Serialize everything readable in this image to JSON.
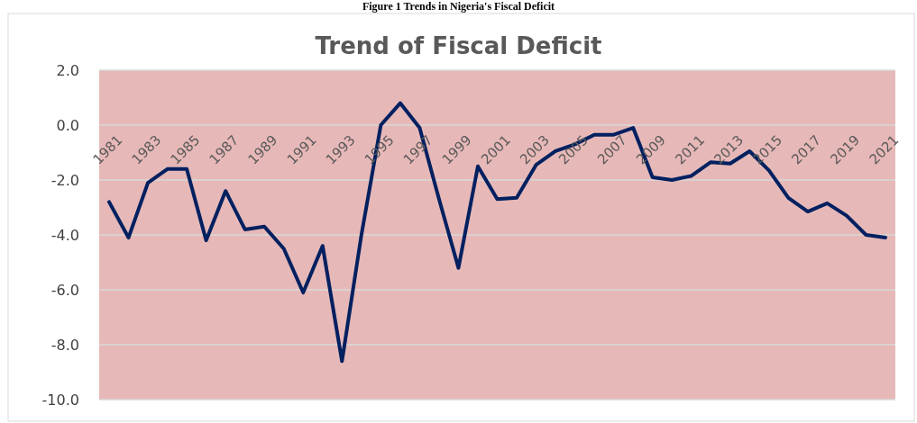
{
  "chart_data": {
    "type": "line",
    "title": "Trend of Fiscal Deficit",
    "annotations": [
      "Figure 1 Trends in Nigeria's Fiscal Deficit"
    ],
    "categories": [
      "1981",
      null,
      "1983",
      null,
      "1985",
      null,
      "1987",
      null,
      "1989",
      null,
      "1991",
      null,
      "1993",
      null,
      "1995",
      null,
      "1997",
      null,
      "1999",
      null,
      "2001",
      null,
      "2003",
      null,
      "2005",
      null,
      "2007",
      null,
      "2009",
      null,
      "2011",
      null,
      "2013",
      null,
      "2015",
      null,
      "2017",
      null,
      "2019",
      null,
      "2021"
    ],
    "series": [
      {
        "color": "#002060",
        "values": [
          -2.8,
          -4.1,
          -2.1,
          -1.6,
          -1.6,
          -4.2,
          -2.4,
          -3.8,
          -3.7,
          -4.5,
          -6.1,
          -4.4,
          -8.6,
          -4.0,
          0.0,
          0.8,
          -0.1,
          -2.7,
          -5.2,
          -1.5,
          -2.7,
          -2.65,
          -1.45,
          -0.95,
          -0.7,
          -0.35,
          -0.35,
          -0.1,
          -1.9,
          -2.0,
          -1.85,
          -1.35,
          -1.4,
          -0.95,
          -1.65,
          -2.65,
          -3.15,
          -2.85,
          -3.3,
          -4.0,
          -4.1
        ]
      }
    ],
    "ylim": [
      -10,
      2
    ],
    "yticks": [
      {
        "value": -10,
        "label": "-10.0"
      },
      {
        "value": -8,
        "label": "-8.0"
      },
      {
        "value": -6,
        "label": "-6.0"
      },
      {
        "value": -4,
        "label": "-4.0"
      },
      {
        "value": -2,
        "label": "-2.0"
      },
      {
        "value": 0,
        "label": "0.0"
      },
      {
        "value": 2,
        "label": "2.0"
      }
    ],
    "grid": "y",
    "marker": "none",
    "line_style": "solid"
  }
}
